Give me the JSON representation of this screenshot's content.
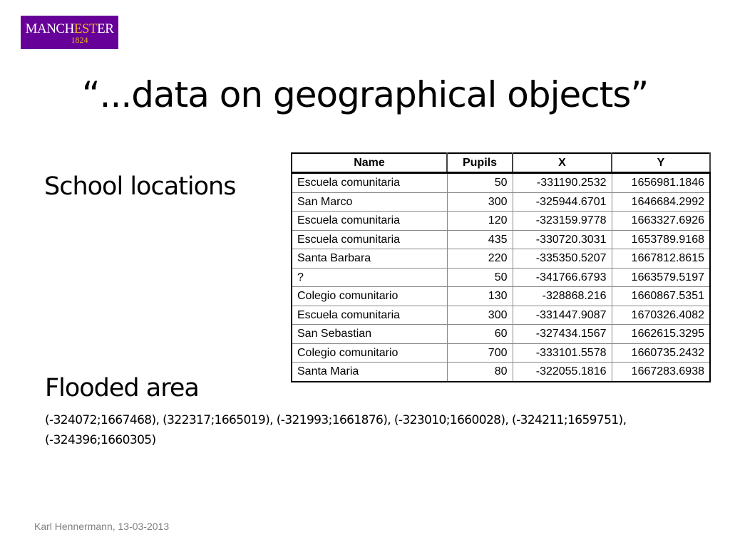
{
  "logo": {
    "text_part1": "MANCH",
    "text_part2": "EST",
    "text_part3": "ER",
    "year": "1824"
  },
  "title": "“...data on geographical objects”",
  "school_heading": "School locations",
  "table": {
    "headers": [
      "Name",
      "Pupils",
      "X",
      "Y"
    ],
    "rows": [
      [
        "Escuela comunitaria",
        "50",
        "-331190.2532",
        "1656981.1846"
      ],
      [
        "San Marco",
        "300",
        "-325944.6701",
        "1646684.2992"
      ],
      [
        "Escuela comunitaria",
        "120",
        "-323159.9778",
        "1663327.6926"
      ],
      [
        "Escuela comunitaria",
        "435",
        "-330720.3031",
        "1653789.9168"
      ],
      [
        "Santa Barbara",
        "220",
        "-335350.5207",
        "1667812.8615"
      ],
      [
        "?",
        "50",
        "-341766.6793",
        "1663579.5197"
      ],
      [
        "Colegio comunitario",
        "130",
        "-328868.216",
        "1660867.5351"
      ],
      [
        "Escuela comunitaria",
        "300",
        "-331447.9087",
        "1670326.4082"
      ],
      [
        "San Sebastian",
        "60",
        "-327434.1567",
        "1662615.3295"
      ],
      [
        "Colegio comunitario",
        "700",
        "-333101.5578",
        "1660735.2432"
      ],
      [
        "Santa Maria",
        "80",
        "-322055.1816",
        "1667283.6938"
      ]
    ]
  },
  "flooded_heading": "Flooded area",
  "flooded_coords": "(-324072;1667468), (322317;1665019), (-321993;1661876), (-323010;1660028),  (-324211;1659751), (-324396;1660305)",
  "footer": "Karl Hennermann, 13-03-2013",
  "colors": {
    "logo_bg": "#660099",
    "logo_gold": "#f0b323"
  }
}
